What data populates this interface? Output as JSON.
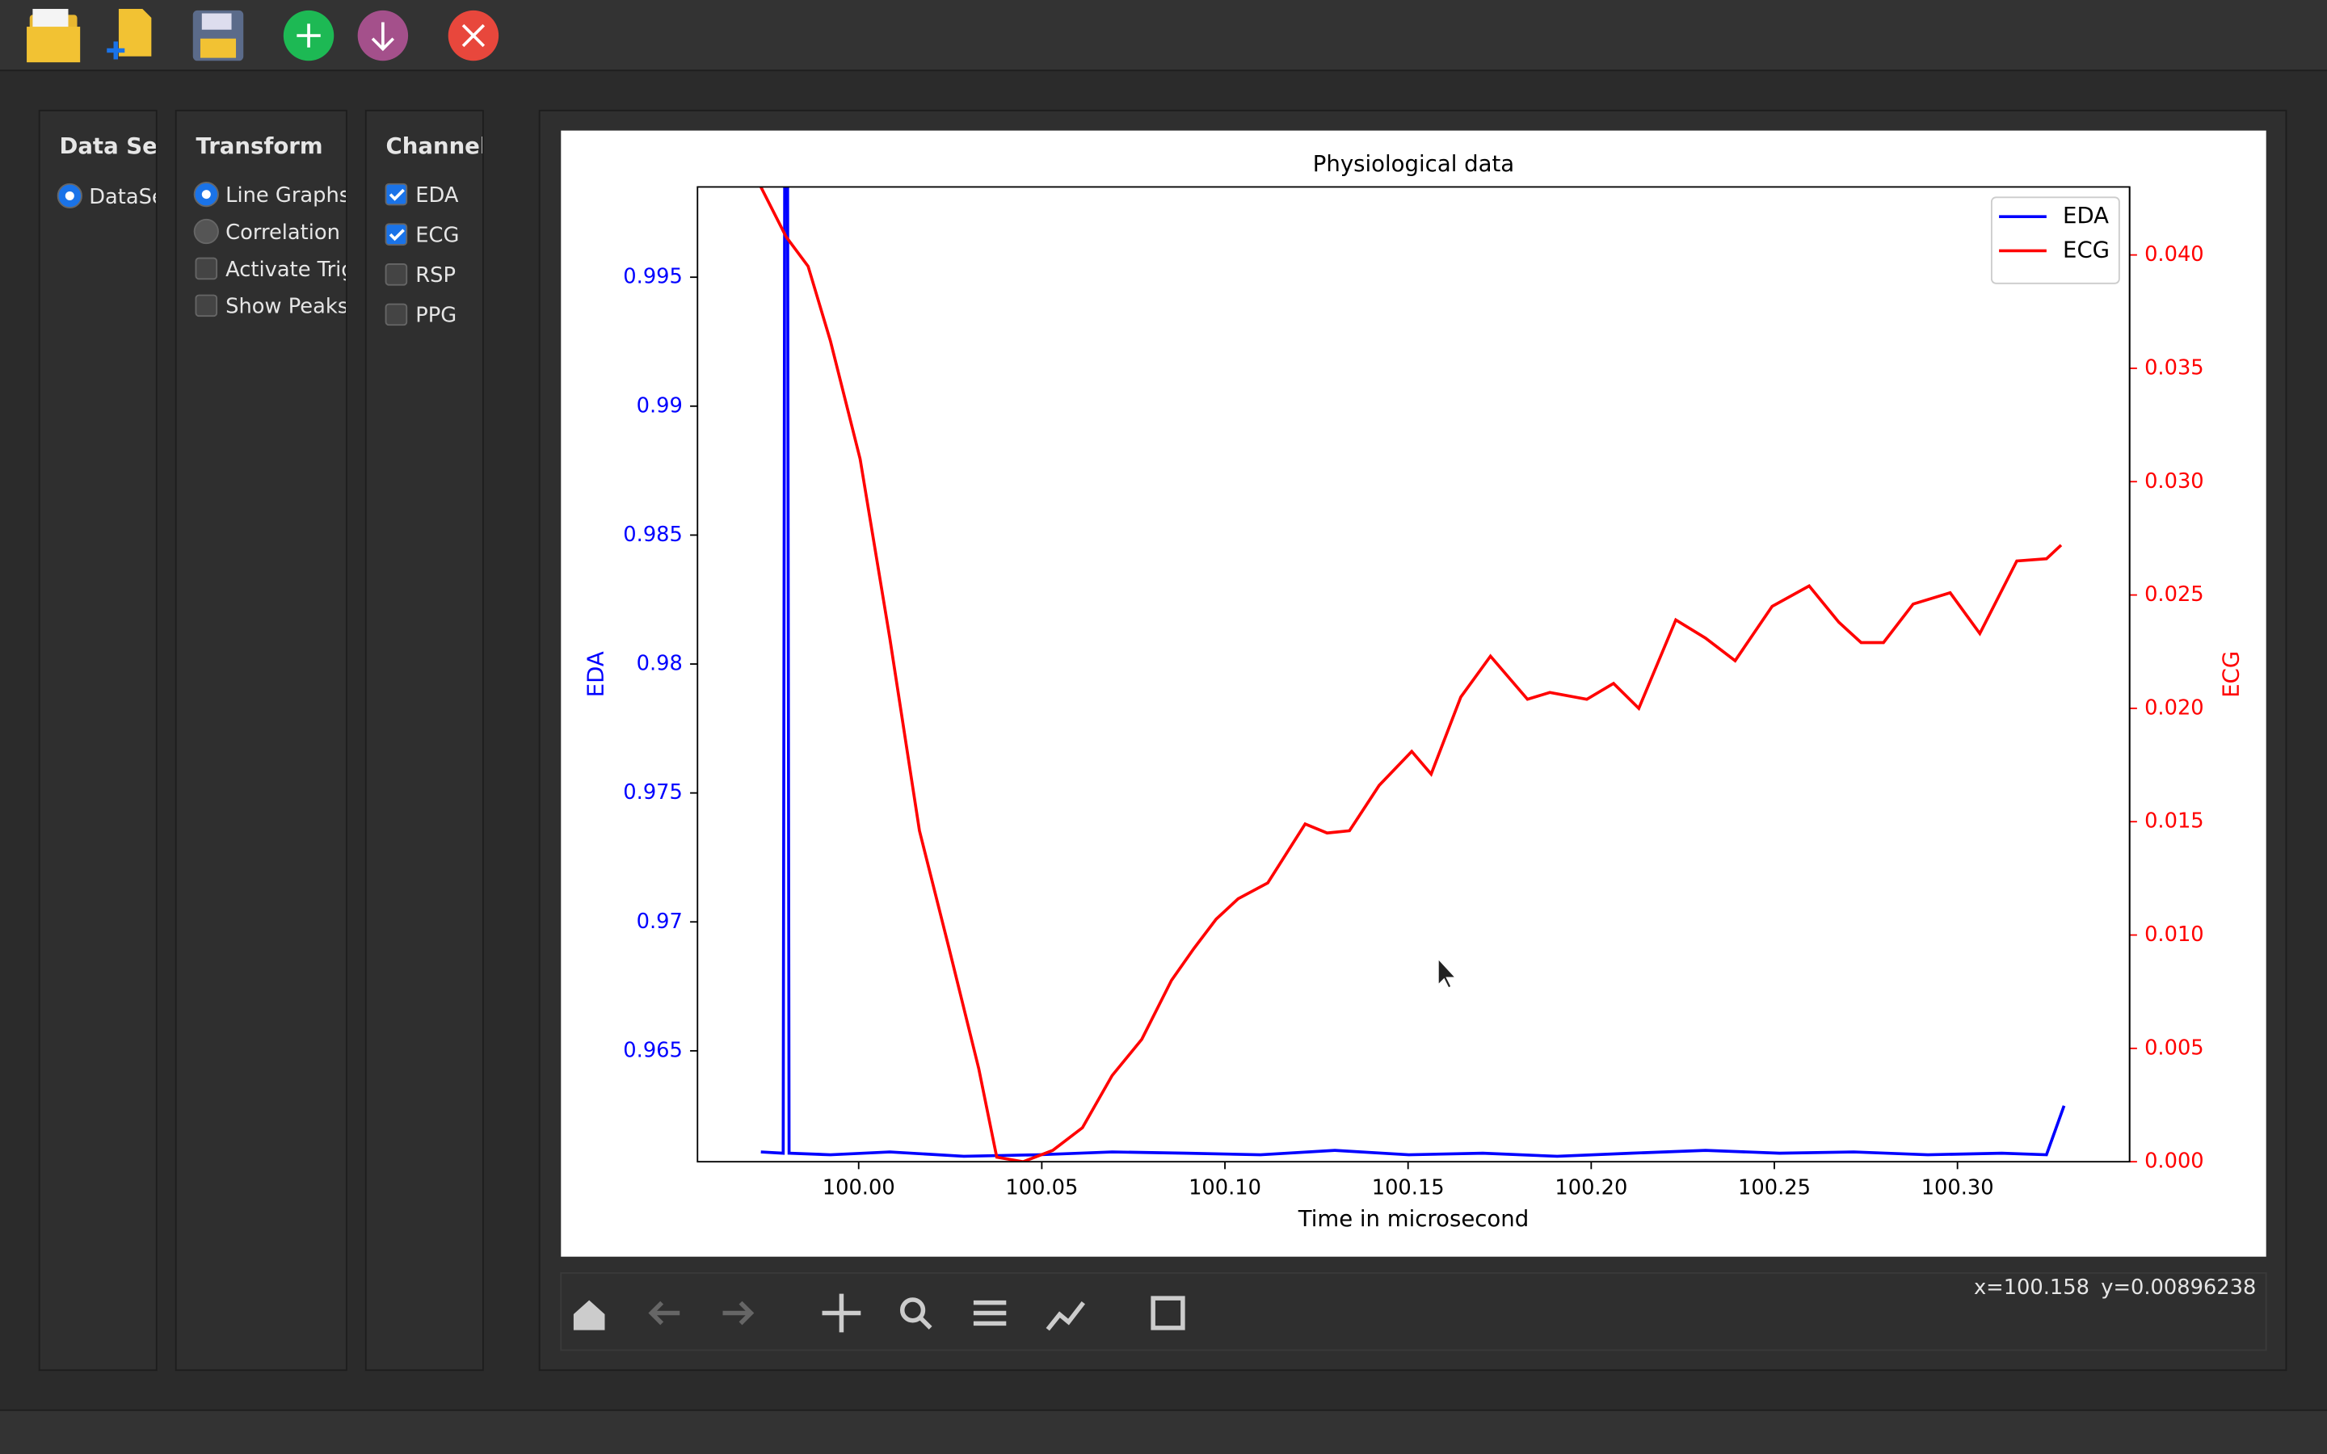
{
  "panels": {
    "data_set": {
      "title": "Data Set",
      "controls": [
        {
          "label": "DataSe",
          "kind": "radio",
          "checked": true
        }
      ]
    },
    "transform": {
      "title": "Transform",
      "controls": [
        {
          "label": "Line Graphs",
          "kind": "radio",
          "checked": true
        },
        {
          "label": "Correlation M",
          "kind": "radio",
          "checked": false
        },
        {
          "label": "Activate Trig",
          "kind": "checkbox",
          "checked": false
        },
        {
          "label": "Show Peaks",
          "kind": "checkbox",
          "checked": false
        }
      ]
    },
    "channels": {
      "title": "Channels",
      "controls": [
        {
          "label": "EDA",
          "kind": "checkbox",
          "checked": true
        },
        {
          "label": "ECG",
          "kind": "checkbox",
          "checked": true
        },
        {
          "label": "RSP",
          "kind": "checkbox",
          "checked": false
        },
        {
          "label": "PPG",
          "kind": "checkbox",
          "checked": false
        }
      ]
    }
  },
  "status": {
    "x": "x=100.158",
    "y": "y=0.00896238"
  },
  "chart_data": {
    "type": "line",
    "title": "Physiological data",
    "xlabel": "Time in microsecond",
    "ylabel": "EDA",
    "y2label": "ECG",
    "xlim": [
      99.956,
      100.347
    ],
    "ylim": [
      0.9607,
      0.9985
    ],
    "y2lim": [
      0,
      0.043
    ],
    "xticks": [
      {
        "value": 100,
        "label": "100.00"
      },
      100.05,
      {
        "value": 100.1,
        "label": "100.10"
      },
      100.15,
      {
        "value": 100.2,
        "label": "100.20"
      },
      100.25,
      {
        "value": 100.3,
        "label": "100.30"
      }
    ],
    "yticks": [
      0.965,
      0.97,
      0.975,
      0.98,
      0.985,
      0.99,
      0.995
    ],
    "y2ticks": [
      {
        "value": 0,
        "label": "0.000"
      },
      0.005,
      {
        "value": 0.01,
        "label": "0.010"
      },
      0.015,
      {
        "value": 0.02,
        "label": "0.020"
      },
      0.025,
      {
        "value": 0.03,
        "label": "0.030"
      },
      0.035,
      {
        "value": 0.04,
        "label": "0.040"
      }
    ],
    "legend": "upper right",
    "series": [
      {
        "name": "EDA",
        "color": "#0000ff",
        "x": [
          99.9733,
          99.9794,
          99.9798,
          99.9806,
          99.981,
          99.9923,
          100.0085,
          100.0287,
          100.049,
          100.0692,
          100.0895,
          100.1097,
          100.13,
          100.1502,
          100.1704,
          100.1907,
          100.2109,
          100.2312,
          100.2514,
          100.2717,
          100.2919,
          100.3121,
          100.3243,
          100.3291
        ],
        "values": [
          0.96108,
          0.96103,
          0.9985,
          0.9985,
          0.96103,
          0.96097,
          0.96108,
          0.96091,
          0.96097,
          0.96108,
          0.96103,
          0.96097,
          0.96114,
          0.96097,
          0.96103,
          0.96091,
          0.96103,
          0.96114,
          0.96103,
          0.96108,
          0.96097,
          0.96103,
          0.96097,
          0.96287
        ]
      },
      {
        "name": "ECG",
        "color": "#ff0000",
        "axis": "y2",
        "x": [
          99.9733,
          99.9802,
          99.9862,
          99.9923,
          100.0004,
          100.0085,
          100.0166,
          100.0247,
          100.0328,
          100.0377,
          100.0449,
          100.053,
          100.0611,
          100.0692,
          100.0773,
          100.0854,
          100.0915,
          100.0976,
          100.1036,
          100.1117,
          100.1219,
          100.1279,
          100.134,
          100.1421,
          100.151,
          100.1563,
          100.1644,
          100.1725,
          100.1826,
          100.1887,
          100.1988,
          100.2061,
          100.213,
          100.2231,
          100.2312,
          100.2393,
          100.2494,
          100.2595,
          100.2676,
          100.2737,
          100.2798,
          100.2879,
          100.298,
          100.3061,
          100.3162,
          100.3243,
          100.3283
        ],
        "values": [
          0.043,
          0.0408,
          0.0395,
          0.0362,
          0.031,
          0.0231,
          0.0146,
          0.0094,
          0.0041,
          0.0002,
          0,
          0.0005,
          0.0015,
          0.0038,
          0.0054,
          0.008,
          0.0094,
          0.0107,
          0.0116,
          0.0123,
          0.0149,
          0.0145,
          0.0146,
          0.0166,
          0.0181,
          0.0171,
          0.0205,
          0.0223,
          0.0204,
          0.0207,
          0.0204,
          0.0211,
          0.02,
          0.0239,
          0.0231,
          0.0221,
          0.0245,
          0.0254,
          0.0238,
          0.0229,
          0.0229,
          0.0246,
          0.0251,
          0.0233,
          0.0265,
          0.0266,
          0.0272
        ]
      }
    ]
  }
}
